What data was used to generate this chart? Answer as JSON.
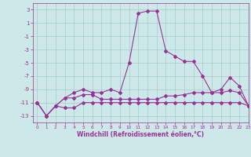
{
  "xlabel": "Windchill (Refroidissement éolien,°C)",
  "background_color": "#cde8e8",
  "grid_color": "#aacccc",
  "line_color": "#993399",
  "x": [
    0,
    1,
    2,
    3,
    4,
    5,
    6,
    7,
    8,
    9,
    10,
    11,
    12,
    13,
    14,
    15,
    16,
    17,
    18,
    19,
    20,
    21,
    22,
    23
  ],
  "line1": [
    -11,
    -13,
    -11.5,
    -11.8,
    -11.8,
    -11,
    -11,
    -11,
    -11,
    -11,
    -11,
    -11,
    -11,
    -11,
    -11,
    -11,
    -11,
    -11,
    -11,
    -11,
    -11,
    -11,
    -11,
    -11.5
  ],
  "line2": [
    -11,
    -13,
    -11.5,
    -10.3,
    -10.3,
    -9.8,
    -9.8,
    -10.5,
    -10.5,
    -10.5,
    -10.5,
    -10.5,
    -10.5,
    -10.5,
    -10,
    -10,
    -9.8,
    -9.5,
    -9.5,
    -9.5,
    -9.5,
    -9.2,
    -9.5,
    -11.5
  ],
  "line3": [
    -11,
    -13,
    -11.5,
    -10.3,
    -9.5,
    -9,
    -9.5,
    -9.5,
    -9,
    -9.5,
    -5,
    2.5,
    2.8,
    2.8,
    -3.2,
    -4,
    -4.8,
    -4.8,
    -7,
    -9.5,
    -9,
    -7.2,
    -8.5,
    -11.5
  ],
  "ylim": [
    -14,
    4
  ],
  "xlim": [
    -0.5,
    23
  ],
  "yticks": [
    3,
    1,
    -1,
    -3,
    -5,
    -7,
    -9,
    -11,
    -13
  ],
  "xticks": [
    0,
    1,
    2,
    3,
    4,
    5,
    6,
    7,
    8,
    9,
    10,
    11,
    12,
    13,
    14,
    15,
    16,
    17,
    18,
    19,
    20,
    21,
    22,
    23
  ],
  "marker": "D",
  "markersize": 2.0,
  "linewidth": 0.8
}
